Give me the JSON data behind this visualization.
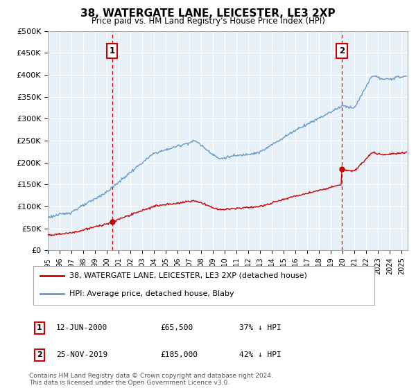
{
  "title": "38, WATERGATE LANE, LEICESTER, LE3 2XP",
  "subtitle": "Price paid vs. HM Land Registry's House Price Index (HPI)",
  "ylabel_ticks": [
    "£0",
    "£50K",
    "£100K",
    "£150K",
    "£200K",
    "£250K",
    "£300K",
    "£350K",
    "£400K",
    "£450K",
    "£500K"
  ],
  "ytick_values": [
    0,
    50000,
    100000,
    150000,
    200000,
    250000,
    300000,
    350000,
    400000,
    450000,
    500000
  ],
  "ylim": [
    0,
    500000
  ],
  "xlim_start": 1995.0,
  "xlim_end": 2025.5,
  "hpi_color": "#6699cc",
  "price_color": "#cc0000",
  "marker1_date": 2000.44,
  "marker1_price": 65500,
  "marker1_label": "1",
  "marker1_date_str": "12-JUN-2000",
  "marker1_price_str": "£65,500",
  "marker1_hpi_str": "37% ↓ HPI",
  "marker2_date": 2019.9,
  "marker2_price": 185000,
  "marker2_label": "2",
  "marker2_date_str": "25-NOV-2019",
  "marker2_price_str": "£185,000",
  "marker2_hpi_str": "42% ↓ HPI",
  "legend_line1": "38, WATERGATE LANE, LEICESTER, LE3 2XP (detached house)",
  "legend_line2": "HPI: Average price, detached house, Blaby",
  "footnote": "Contains HM Land Registry data © Crown copyright and database right 2024.\nThis data is licensed under the Open Government Licence v3.0.",
  "background_color": "#ffffff",
  "plot_bg_color": "#e8f0f8",
  "grid_color": "#ffffff"
}
